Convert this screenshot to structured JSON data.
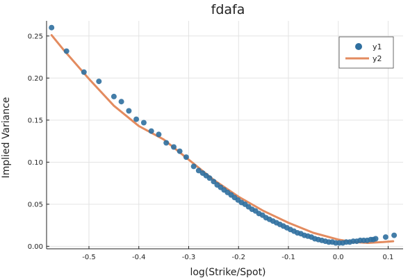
{
  "chart_data": {
    "type": "scatter",
    "title": "fdafa",
    "xlabel": "log(Strike/Spot)",
    "ylabel": "Implied Variance",
    "xlim": [
      -0.585,
      0.13
    ],
    "ylim": [
      -0.003,
      0.268
    ],
    "xticks": [
      -0.5,
      -0.4,
      -0.3,
      -0.2,
      -0.1,
      0.0,
      0.1
    ],
    "xtick_labels": [
      "-0.5",
      "-0.4",
      "-0.3",
      "-0.2",
      "-0.1",
      "0.0",
      "0.1"
    ],
    "yticks": [
      0.0,
      0.05,
      0.1,
      0.15,
      0.2,
      0.25
    ],
    "ytick_labels": [
      "0.00",
      "0.05",
      "0.10",
      "0.15",
      "0.20",
      "0.25"
    ],
    "grid": true,
    "legend_position": "top-right",
    "series": [
      {
        "name": "y1",
        "kind": "scatter",
        "color": "#2f6f9f",
        "x": [
          -0.575,
          -0.545,
          -0.51,
          -0.48,
          -0.45,
          -0.435,
          -0.42,
          -0.405,
          -0.39,
          -0.375,
          -0.36,
          -0.345,
          -0.33,
          -0.318,
          -0.305,
          -0.29,
          -0.28,
          -0.272,
          -0.265,
          -0.258,
          -0.25,
          -0.243,
          -0.236,
          -0.229,
          -0.222,
          -0.215,
          -0.208,
          -0.201,
          -0.194,
          -0.187,
          -0.18,
          -0.173,
          -0.166,
          -0.159,
          -0.152,
          -0.145,
          -0.138,
          -0.131,
          -0.124,
          -0.117,
          -0.11,
          -0.103,
          -0.096,
          -0.089,
          -0.082,
          -0.075,
          -0.068,
          -0.061,
          -0.054,
          -0.047,
          -0.04,
          -0.033,
          -0.026,
          -0.019,
          -0.012,
          -0.005,
          0.002,
          0.009,
          0.016,
          0.023,
          0.03,
          0.037,
          0.044,
          0.051,
          0.058,
          0.065,
          0.07,
          0.075,
          0.095,
          0.112
        ],
        "y": [
          0.26,
          0.232,
          0.207,
          0.196,
          0.178,
          0.172,
          0.161,
          0.151,
          0.147,
          0.137,
          0.133,
          0.123,
          0.118,
          0.113,
          0.106,
          0.095,
          0.09,
          0.087,
          0.084,
          0.081,
          0.077,
          0.073,
          0.07,
          0.067,
          0.064,
          0.061,
          0.058,
          0.055,
          0.052,
          0.05,
          0.047,
          0.044,
          0.042,
          0.039,
          0.037,
          0.034,
          0.032,
          0.03,
          0.028,
          0.026,
          0.024,
          0.022,
          0.02,
          0.018,
          0.016,
          0.015,
          0.013,
          0.012,
          0.011,
          0.009,
          0.008,
          0.007,
          0.006,
          0.005,
          0.005,
          0.004,
          0.004,
          0.004,
          0.005,
          0.005,
          0.006,
          0.006,
          0.007,
          0.007,
          0.007,
          0.008,
          0.008,
          0.009,
          0.011,
          0.013
        ]
      },
      {
        "name": "y2",
        "kind": "line",
        "color": "#e38b5f",
        "x": [
          -0.575,
          -0.55,
          -0.5,
          -0.45,
          -0.4,
          -0.35,
          -0.3,
          -0.25,
          -0.2,
          -0.15,
          -0.1,
          -0.05,
          0.0,
          0.03,
          0.06,
          0.09,
          0.11
        ],
        "y": [
          0.251,
          0.233,
          0.199,
          0.167,
          0.143,
          0.127,
          0.103,
          0.079,
          0.059,
          0.042,
          0.028,
          0.016,
          0.008,
          0.005,
          0.004,
          0.005,
          0.006
        ]
      }
    ]
  }
}
